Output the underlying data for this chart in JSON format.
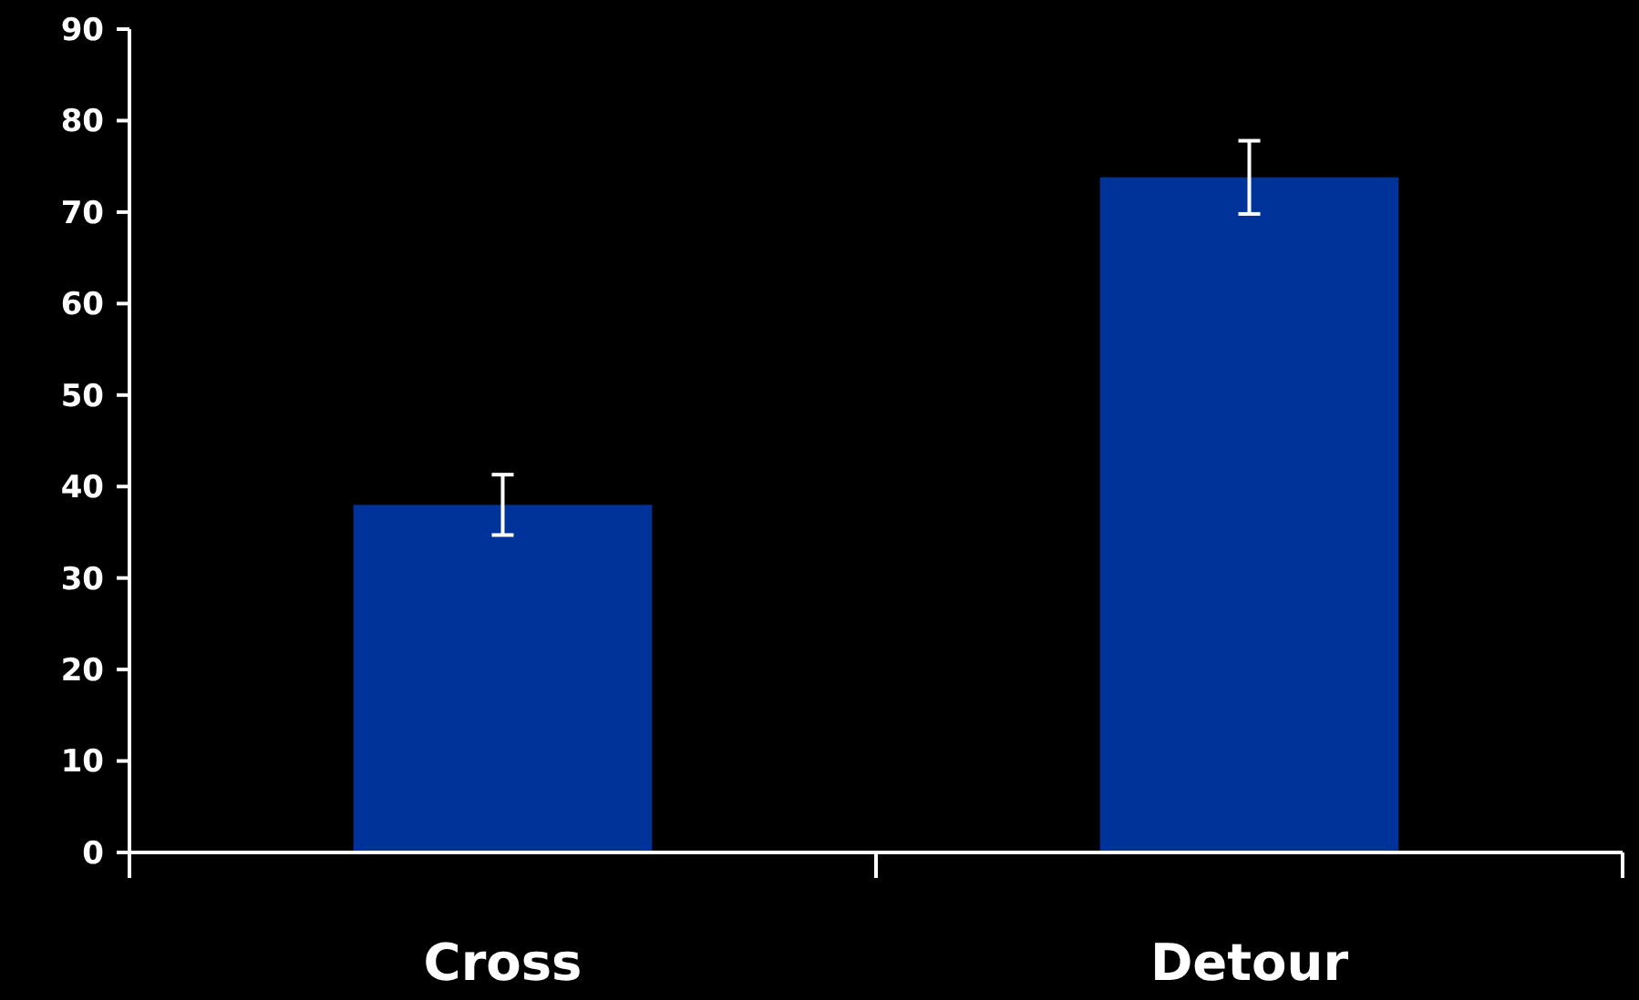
{
  "chart_data": {
    "type": "bar",
    "categories": [
      "Cross",
      "Detour"
    ],
    "values": [
      38,
      73.8
    ],
    "errors": [
      3.3,
      4
    ],
    "color": "#003399",
    "ylim": [
      0,
      90
    ],
    "yticks": [
      0,
      10,
      20,
      30,
      40,
      50,
      60,
      70,
      80,
      90
    ],
    "grid": false
  }
}
